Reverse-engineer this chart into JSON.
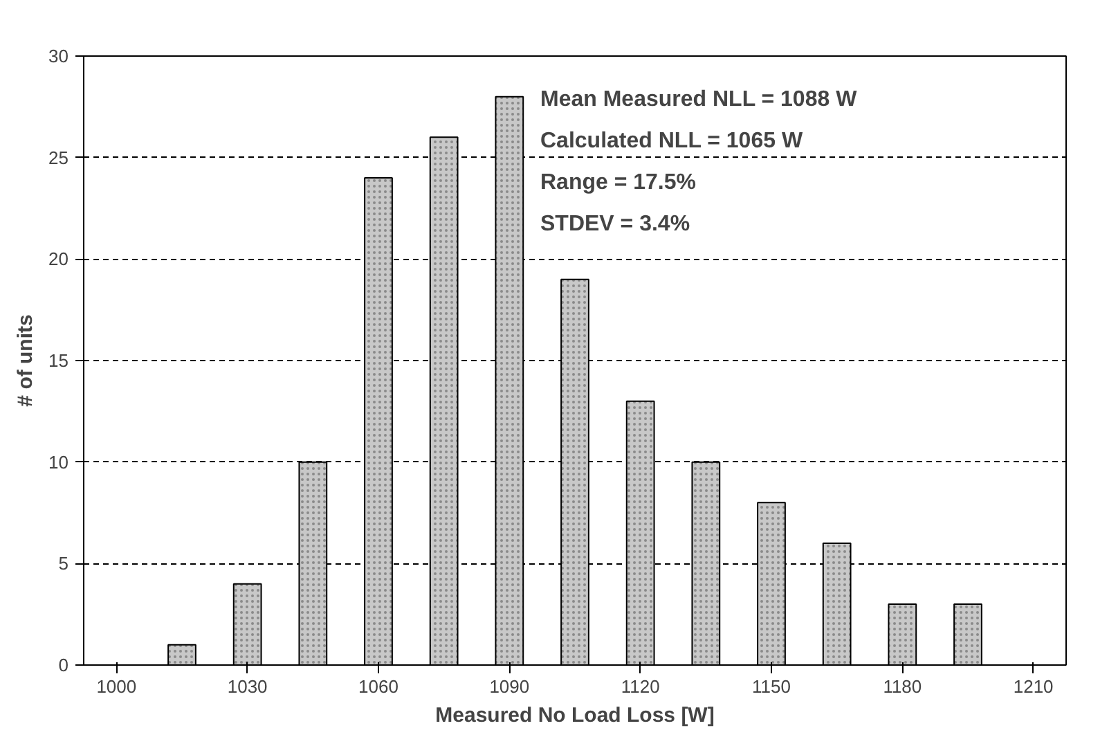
{
  "chart_data": {
    "type": "bar",
    "xlabel": "Measured No Load Loss [W]",
    "ylabel": "# of units",
    "categories": [
      "1000",
      null,
      "1030",
      null,
      "1060",
      null,
      "1090",
      null,
      "1120",
      null,
      "1150",
      null,
      "1180",
      null,
      "1210"
    ],
    "values": [
      null,
      1,
      4,
      10,
      24,
      26,
      28,
      19,
      13,
      10,
      8,
      6,
      3,
      3,
      null
    ],
    "color": "#c8c8c8",
    "ylim": [
      0,
      30
    ],
    "yticks": [
      0,
      5,
      10,
      15,
      20,
      25,
      30
    ],
    "grid": "y",
    "line_style": "dashed",
    "annotations": [
      "Mean Measured NLL = 1088 W",
      "Calculated NLL = 1065 W",
      "Range = 17.5%",
      "STDEV = 3.4%"
    ]
  }
}
